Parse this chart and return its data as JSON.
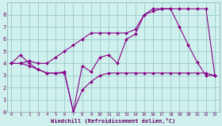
{
  "bg_color": "#cff0ec",
  "line_color": "#880088",
  "grid_color": "#99cccc",
  "xlabel": "Windchill (Refroidissement éolien,°C)",
  "xlim": [
    -0.5,
    23.5
  ],
  "ylim": [
    0,
    9
  ],
  "xticks": [
    0,
    1,
    2,
    3,
    4,
    5,
    6,
    7,
    8,
    9,
    10,
    11,
    12,
    13,
    14,
    15,
    16,
    17,
    18,
    19,
    20,
    21,
    22,
    23
  ],
  "yticks": [
    0,
    1,
    2,
    3,
    4,
    5,
    6,
    7,
    8
  ],
  "series": [
    {
      "x": [
        0,
        1,
        2,
        3,
        4,
        5,
        6,
        7,
        8,
        9,
        10,
        11,
        12,
        13,
        14,
        15,
        16,
        17,
        18,
        19,
        20,
        21,
        22,
        23
      ],
      "y": [
        4.0,
        4.7,
        4.0,
        3.5,
        3.2,
        3.2,
        3.3,
        0.0,
        1.8,
        2.5,
        3.0,
        3.2,
        3.2,
        3.2,
        3.2,
        3.2,
        3.2,
        3.2,
        3.2,
        3.2,
        3.2,
        3.2,
        3.2,
        3.0
      ]
    },
    {
      "x": [
        0,
        1,
        2,
        3,
        4,
        5,
        6,
        7,
        8,
        9,
        10,
        11,
        12,
        13,
        14,
        15,
        16,
        17,
        18,
        19,
        20,
        21,
        22,
        23
      ],
      "y": [
        4.0,
        4.0,
        3.8,
        3.5,
        3.2,
        3.2,
        3.2,
        0.0,
        3.8,
        3.3,
        4.5,
        4.7,
        4.0,
        6.0,
        6.4,
        8.0,
        8.5,
        8.5,
        8.5,
        7.0,
        5.5,
        4.1,
        3.0,
        3.0
      ]
    },
    {
      "x": [
        0,
        1,
        2,
        3,
        4,
        5,
        6,
        7,
        8,
        9,
        10,
        11,
        12,
        13,
        14,
        15,
        16,
        17,
        18,
        19,
        20,
        21,
        22,
        23
      ],
      "y": [
        4.0,
        4.0,
        4.2,
        4.0,
        4.0,
        4.5,
        5.0,
        5.5,
        6.0,
        6.5,
        6.5,
        6.5,
        6.5,
        6.5,
        6.8,
        8.0,
        8.3,
        8.5,
        8.5,
        8.5,
        8.5,
        8.5,
        8.5,
        3.0
      ]
    }
  ]
}
